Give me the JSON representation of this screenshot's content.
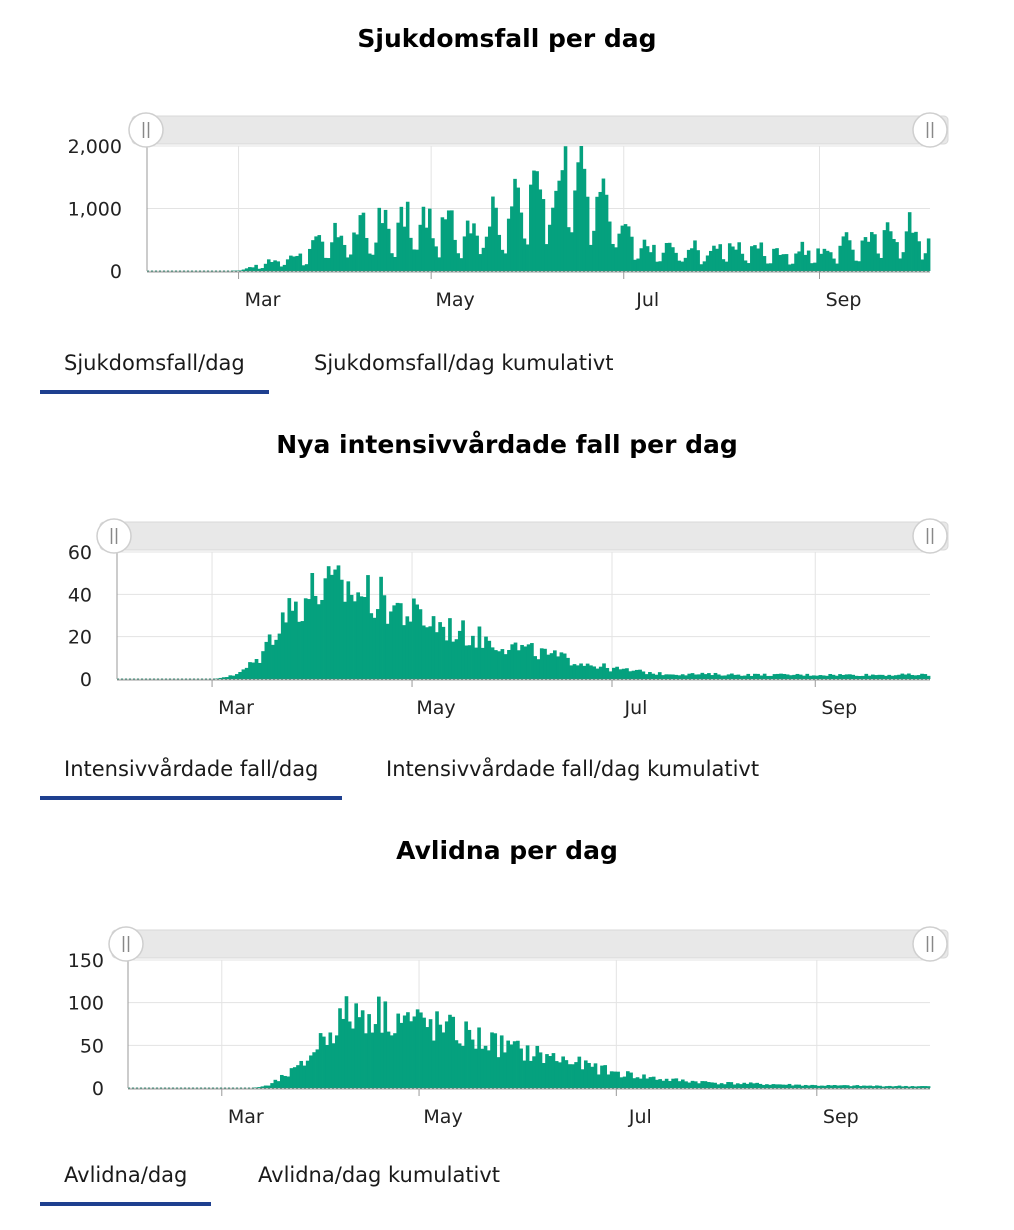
{
  "colors": {
    "bar": "#05a17e",
    "grid": "#e3e3e3",
    "tab_active": "#1e3f8f",
    "slider_track": "#e8e8e8"
  },
  "charts": [
    {
      "title": "Sjukdomsfall per dag",
      "tabs": [
        {
          "label": "Sjukdomsfall/dag",
          "active": true
        },
        {
          "label": "Sjukdomsfall/dag kumulativt",
          "active": false
        }
      ]
    },
    {
      "title": "Nya intensivvårdade fall per dag",
      "tabs": [
        {
          "label": "Intensivvårdade fall/dag",
          "active": true
        },
        {
          "label": "Intensivvårdade fall/dag kumulativt",
          "active": false
        }
      ]
    },
    {
      "title": "Avlidna per dag",
      "tabs": [
        {
          "label": "Avlidna/dag",
          "active": true
        },
        {
          "label": "Avlidna/dag kumulativt",
          "active": false
        }
      ]
    }
  ],
  "chart_data": [
    {
      "type": "bar",
      "title": "Sjukdomsfall per dag",
      "x_start": "2020-02-01",
      "x_end": "2020-10-05",
      "x_ticks": [
        {
          "date": "2020-03-01",
          "label": "Mar"
        },
        {
          "date": "2020-05-01",
          "label": "May"
        },
        {
          "date": "2020-07-01",
          "label": "Jul"
        },
        {
          "date": "2020-09-01",
          "label": "Sep"
        }
      ],
      "y_ticks": [
        {
          "value": 0,
          "label": "0"
        },
        {
          "value": 1000,
          "label": "1,000"
        },
        {
          "value": 2000,
          "label": "2,000"
        }
      ],
      "ylim": [
        0,
        2000
      ],
      "grid": true,
      "key_points": [
        [
          "2020-02-01",
          0
        ],
        [
          "2020-02-27",
          0
        ],
        [
          "2020-03-01",
          20
        ],
        [
          "2020-03-10",
          120
        ],
        [
          "2020-03-20",
          250
        ],
        [
          "2020-04-01",
          500
        ],
        [
          "2020-04-15",
          650
        ],
        [
          "2020-04-25",
          700
        ],
        [
          "2020-05-10",
          650
        ],
        [
          "2020-05-20",
          750
        ],
        [
          "2020-05-28",
          950
        ],
        [
          "2020-06-05",
          1300
        ],
        [
          "2020-06-12",
          1550
        ],
        [
          "2020-06-20",
          1250
        ],
        [
          "2020-06-28",
          700
        ],
        [
          "2020-07-05",
          350
        ],
        [
          "2020-07-20",
          300
        ],
        [
          "2020-08-05",
          350
        ],
        [
          "2020-08-20",
          280
        ],
        [
          "2020-09-01",
          300
        ],
        [
          "2020-09-15",
          450
        ],
        [
          "2020-09-28",
          620
        ],
        [
          "2020-10-05",
          500
        ]
      ]
    },
    {
      "type": "bar",
      "title": "Nya intensivvårdade fall per dag",
      "x_start": "2020-02-01",
      "x_end": "2020-10-05",
      "x_ticks": [
        {
          "date": "2020-03-01",
          "label": "Mar"
        },
        {
          "date": "2020-05-01",
          "label": "May"
        },
        {
          "date": "2020-07-01",
          "label": "Jul"
        },
        {
          "date": "2020-09-01",
          "label": "Sep"
        }
      ],
      "y_ticks": [
        {
          "value": 0,
          "label": "0"
        },
        {
          "value": 20,
          "label": "20"
        },
        {
          "value": 40,
          "label": "40"
        },
        {
          "value": 60,
          "label": "60"
        }
      ],
      "ylim": [
        0,
        60
      ],
      "grid": true,
      "key_points": [
        [
          "2020-02-01",
          0
        ],
        [
          "2020-03-01",
          0
        ],
        [
          "2020-03-08",
          2
        ],
        [
          "2020-03-15",
          10
        ],
        [
          "2020-03-22",
          30
        ],
        [
          "2020-04-01",
          42
        ],
        [
          "2020-04-10",
          43
        ],
        [
          "2020-04-20",
          38
        ],
        [
          "2020-05-01",
          30
        ],
        [
          "2020-05-15",
          22
        ],
        [
          "2020-06-01",
          15
        ],
        [
          "2020-06-15",
          10
        ],
        [
          "2020-06-30",
          5
        ],
        [
          "2020-07-15",
          2.5
        ],
        [
          "2020-08-15",
          2
        ],
        [
          "2020-10-05",
          2
        ]
      ]
    },
    {
      "type": "bar",
      "title": "Avlidna per dag",
      "x_start": "2020-02-01",
      "x_end": "2020-10-05",
      "x_ticks": [
        {
          "date": "2020-03-01",
          "label": "Mar"
        },
        {
          "date": "2020-05-01",
          "label": "May"
        },
        {
          "date": "2020-07-01",
          "label": "Jul"
        },
        {
          "date": "2020-09-01",
          "label": "Sep"
        }
      ],
      "y_ticks": [
        {
          "value": 0,
          "label": "0"
        },
        {
          "value": 50,
          "label": "50"
        },
        {
          "value": 100,
          "label": "100"
        },
        {
          "value": 150,
          "label": "150"
        }
      ],
      "ylim": [
        0,
        150
      ],
      "grid": true,
      "key_points": [
        [
          "2020-02-01",
          0
        ],
        [
          "2020-03-10",
          0
        ],
        [
          "2020-03-15",
          3
        ],
        [
          "2020-03-25",
          25
        ],
        [
          "2020-04-01",
          60
        ],
        [
          "2020-04-08",
          85
        ],
        [
          "2020-04-15",
          88
        ],
        [
          "2020-04-25",
          82
        ],
        [
          "2020-05-05",
          72
        ],
        [
          "2020-05-15",
          62
        ],
        [
          "2020-05-30",
          45
        ],
        [
          "2020-06-15",
          32
        ],
        [
          "2020-06-30",
          18
        ],
        [
          "2020-07-15",
          10
        ],
        [
          "2020-08-01",
          6
        ],
        [
          "2020-09-01",
          3
        ],
        [
          "2020-10-05",
          2
        ]
      ]
    }
  ]
}
